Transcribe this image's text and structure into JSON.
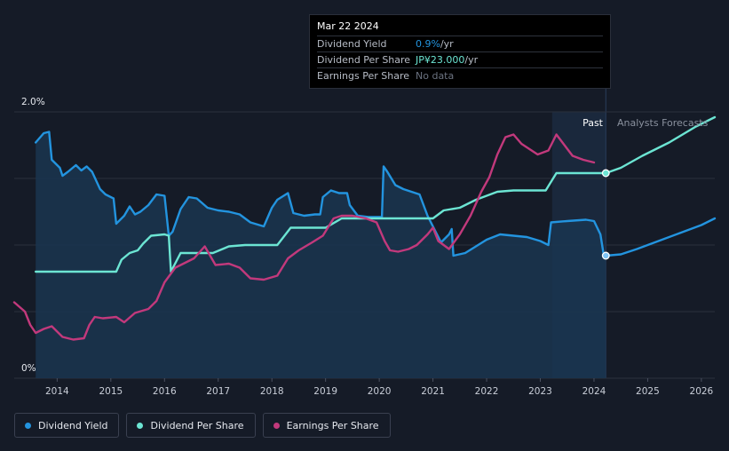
{
  "tooltip": {
    "date": "Mar 22 2024",
    "rows": [
      {
        "label": "Dividend Yield",
        "value": "0.9%",
        "unit": " /yr",
        "color": "#2394df"
      },
      {
        "label": "Dividend Per Share",
        "value": "JP¥23.000",
        "unit": " /yr",
        "color": "#6ce5d3"
      },
      {
        "label": "Earnings Per Share",
        "value": "No data",
        "unit": "",
        "color": "#6b7280"
      }
    ]
  },
  "labels": {
    "past": "Past",
    "forecast": "Analysts Forecasts"
  },
  "legend": [
    {
      "label": "Dividend Yield",
      "color": "#2394df"
    },
    {
      "label": "Dividend Per Share",
      "color": "#6ce5d3"
    },
    {
      "label": "Earnings Per Share",
      "color": "#c2397c"
    }
  ],
  "colors": {
    "background": "#151b27",
    "grid": "#2a303c",
    "yield": "#2394df",
    "dps": "#6ce5d3",
    "eps": "#c2397c",
    "area_fill": "#1a3550",
    "forecast_band": "#1c2d44"
  },
  "chart_data": {
    "type": "line",
    "y_tick_labels": [
      "2.0%",
      "0%"
    ],
    "ylim": [
      0,
      2.0
    ],
    "xlim": [
      2013.2,
      2026.25
    ],
    "x_ticks": [
      {
        "value": 2014,
        "label": "2014"
      },
      {
        "value": 2015,
        "label": "2015"
      },
      {
        "value": 2016,
        "label": "2016"
      },
      {
        "value": 2017,
        "label": "2017"
      },
      {
        "value": 2018,
        "label": "2018"
      },
      {
        "value": 2019,
        "label": "2019"
      },
      {
        "value": 2020,
        "label": "2020"
      },
      {
        "value": 2021,
        "label": "2021"
      },
      {
        "value": 2022,
        "label": "2022"
      },
      {
        "value": 2023,
        "label": "2023"
      },
      {
        "value": 2024,
        "label": "2024"
      },
      {
        "value": 2025,
        "label": "2025"
      },
      {
        "value": 2026,
        "label": "2026"
      }
    ],
    "past_forecast_split": 2024.22,
    "forecast_band_start": 2023.22,
    "grid": true,
    "series": [
      {
        "name": "Dividend Yield",
        "unit": "%",
        "values": [
          [
            2013.6,
            1.77
          ],
          [
            2013.75,
            1.84
          ],
          [
            2013.85,
            1.85
          ],
          [
            2013.9,
            1.64
          ],
          [
            2014.05,
            1.58
          ],
          [
            2014.1,
            1.52
          ],
          [
            2014.2,
            1.55
          ],
          [
            2014.35,
            1.6
          ],
          [
            2014.45,
            1.56
          ],
          [
            2014.55,
            1.59
          ],
          [
            2014.65,
            1.55
          ],
          [
            2014.8,
            1.42
          ],
          [
            2014.9,
            1.38
          ],
          [
            2015.05,
            1.35
          ],
          [
            2015.1,
            1.16
          ],
          [
            2015.25,
            1.22
          ],
          [
            2015.35,
            1.29
          ],
          [
            2015.45,
            1.23
          ],
          [
            2015.55,
            1.25
          ],
          [
            2015.7,
            1.3
          ],
          [
            2015.85,
            1.38
          ],
          [
            2016.0,
            1.37
          ],
          [
            2016.08,
            1.07
          ],
          [
            2016.15,
            1.1
          ],
          [
            2016.3,
            1.27
          ],
          [
            2016.45,
            1.36
          ],
          [
            2016.6,
            1.35
          ],
          [
            2016.8,
            1.28
          ],
          [
            2017.0,
            1.26
          ],
          [
            2017.2,
            1.25
          ],
          [
            2017.4,
            1.23
          ],
          [
            2017.6,
            1.17
          ],
          [
            2017.85,
            1.14
          ],
          [
            2018.0,
            1.28
          ],
          [
            2018.1,
            1.34
          ],
          [
            2018.3,
            1.39
          ],
          [
            2018.4,
            1.24
          ],
          [
            2018.6,
            1.22
          ],
          [
            2018.8,
            1.23
          ],
          [
            2018.9,
            1.23
          ],
          [
            2018.95,
            1.36
          ],
          [
            2019.1,
            1.41
          ],
          [
            2019.25,
            1.39
          ],
          [
            2019.4,
            1.39
          ],
          [
            2019.45,
            1.3
          ],
          [
            2019.6,
            1.22
          ],
          [
            2019.8,
            1.21
          ],
          [
            2019.95,
            1.21
          ],
          [
            2020.05,
            1.21
          ],
          [
            2020.08,
            1.59
          ],
          [
            2020.15,
            1.55
          ],
          [
            2020.3,
            1.45
          ],
          [
            2020.45,
            1.42
          ],
          [
            2020.6,
            1.4
          ],
          [
            2020.75,
            1.38
          ],
          [
            2020.9,
            1.22
          ],
          [
            2021.05,
            1.1
          ],
          [
            2021.15,
            1.02
          ],
          [
            2021.3,
            1.08
          ],
          [
            2021.35,
            1.12
          ],
          [
            2021.38,
            0.92
          ],
          [
            2021.6,
            0.94
          ],
          [
            2021.8,
            0.99
          ],
          [
            2022.0,
            1.04
          ],
          [
            2022.25,
            1.08
          ],
          [
            2022.5,
            1.07
          ],
          [
            2022.75,
            1.06
          ],
          [
            2023.0,
            1.03
          ],
          [
            2023.15,
            1.0
          ],
          [
            2023.2,
            1.17
          ],
          [
            2023.5,
            1.18
          ],
          [
            2023.85,
            1.19
          ],
          [
            2024.0,
            1.18
          ],
          [
            2024.12,
            1.08
          ],
          [
            2024.18,
            0.93
          ],
          [
            2024.22,
            0.92
          ],
          [
            2024.5,
            0.93
          ],
          [
            2024.8,
            0.97
          ],
          [
            2025.2,
            1.03
          ],
          [
            2025.6,
            1.09
          ],
          [
            2026.0,
            1.15
          ],
          [
            2026.25,
            1.2
          ]
        ]
      },
      {
        "name": "Dividend Per Share",
        "values": [
          [
            2013.6,
            0.8
          ],
          [
            2014.0,
            0.8
          ],
          [
            2015.1,
            0.8
          ],
          [
            2015.2,
            0.89
          ],
          [
            2015.35,
            0.94
          ],
          [
            2015.5,
            0.96
          ],
          [
            2015.6,
            1.01
          ],
          [
            2015.75,
            1.07
          ],
          [
            2016.0,
            1.08
          ],
          [
            2016.08,
            1.07
          ],
          [
            2016.12,
            0.8
          ],
          [
            2016.3,
            0.94
          ],
          [
            2016.5,
            0.94
          ],
          [
            2016.9,
            0.94
          ],
          [
            2017.2,
            0.99
          ],
          [
            2017.5,
            1.0
          ],
          [
            2018.1,
            1.0
          ],
          [
            2018.35,
            1.13
          ],
          [
            2019.0,
            1.13
          ],
          [
            2019.3,
            1.2
          ],
          [
            2020.0,
            1.2
          ],
          [
            2020.5,
            1.2
          ],
          [
            2021.0,
            1.2
          ],
          [
            2021.2,
            1.26
          ],
          [
            2021.5,
            1.28
          ],
          [
            2021.8,
            1.34
          ],
          [
            2022.2,
            1.4
          ],
          [
            2022.5,
            1.41
          ],
          [
            2023.0,
            1.41
          ],
          [
            2023.1,
            1.41
          ],
          [
            2023.3,
            1.54
          ],
          [
            2024.22,
            1.54
          ],
          [
            2024.5,
            1.58
          ],
          [
            2024.9,
            1.67
          ],
          [
            2025.4,
            1.77
          ],
          [
            2025.9,
            1.89
          ],
          [
            2026.25,
            1.96
          ]
        ]
      },
      {
        "name": "Earnings Per Share",
        "values": [
          [
            2013.2,
            0.57
          ],
          [
            2013.4,
            0.5
          ],
          [
            2013.5,
            0.4
          ],
          [
            2013.6,
            0.34
          ],
          [
            2013.75,
            0.37
          ],
          [
            2013.9,
            0.39
          ],
          [
            2014.1,
            0.31
          ],
          [
            2014.3,
            0.29
          ],
          [
            2014.5,
            0.3
          ],
          [
            2014.6,
            0.4
          ],
          [
            2014.7,
            0.46
          ],
          [
            2014.85,
            0.45
          ],
          [
            2015.1,
            0.46
          ],
          [
            2015.25,
            0.42
          ],
          [
            2015.45,
            0.49
          ],
          [
            2015.7,
            0.52
          ],
          [
            2015.85,
            0.58
          ],
          [
            2016.0,
            0.72
          ],
          [
            2016.2,
            0.83
          ],
          [
            2016.4,
            0.87
          ],
          [
            2016.55,
            0.9
          ],
          [
            2016.75,
            0.99
          ],
          [
            2016.95,
            0.85
          ],
          [
            2017.2,
            0.86
          ],
          [
            2017.4,
            0.83
          ],
          [
            2017.6,
            0.75
          ],
          [
            2017.85,
            0.74
          ],
          [
            2018.1,
            0.77
          ],
          [
            2018.3,
            0.9
          ],
          [
            2018.5,
            0.96
          ],
          [
            2018.75,
            1.02
          ],
          [
            2018.95,
            1.07
          ],
          [
            2019.15,
            1.2
          ],
          [
            2019.3,
            1.22
          ],
          [
            2019.5,
            1.22
          ],
          [
            2019.75,
            1.2
          ],
          [
            2019.95,
            1.17
          ],
          [
            2020.1,
            1.03
          ],
          [
            2020.2,
            0.96
          ],
          [
            2020.35,
            0.95
          ],
          [
            2020.55,
            0.97
          ],
          [
            2020.7,
            1.0
          ],
          [
            2020.9,
            1.08
          ],
          [
            2021.0,
            1.13
          ],
          [
            2021.1,
            1.03
          ],
          [
            2021.3,
            0.97
          ],
          [
            2021.5,
            1.08
          ],
          [
            2021.7,
            1.22
          ],
          [
            2021.9,
            1.4
          ],
          [
            2022.05,
            1.51
          ],
          [
            2022.2,
            1.68
          ],
          [
            2022.35,
            1.81
          ],
          [
            2022.5,
            1.83
          ],
          [
            2022.65,
            1.76
          ],
          [
            2022.8,
            1.72
          ],
          [
            2022.95,
            1.68
          ],
          [
            2023.15,
            1.71
          ],
          [
            2023.3,
            1.83
          ],
          [
            2023.45,
            1.75
          ],
          [
            2023.6,
            1.67
          ],
          [
            2023.8,
            1.64
          ],
          [
            2024.0,
            1.62
          ]
        ]
      }
    ],
    "markers": [
      {
        "series": "Dividend Per Share",
        "x": 2024.22,
        "y": 1.54
      },
      {
        "series": "Dividend Yield",
        "x": 2024.22,
        "y": 0.92
      }
    ]
  }
}
